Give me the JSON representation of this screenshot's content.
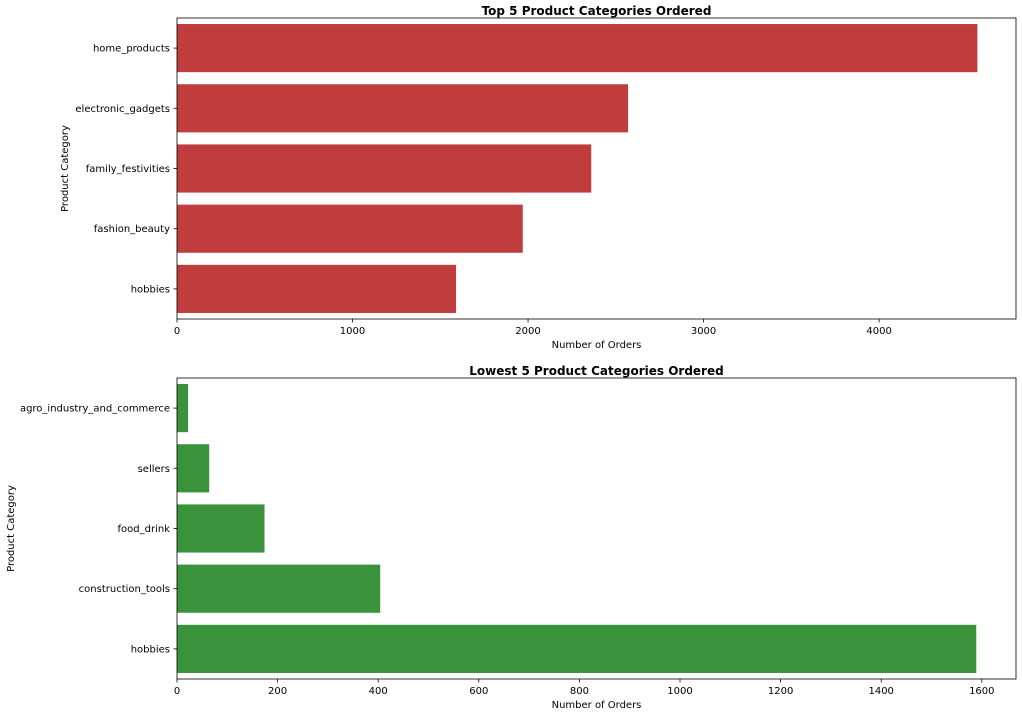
{
  "chart_data": [
    {
      "type": "bar",
      "orientation": "horizontal",
      "title": "Top 5 Product Categories Ordered",
      "xlabel": "Number of Orders",
      "ylabel": "Product Category",
      "categories": [
        "home_products",
        "electronic_gadgets",
        "family_festivities",
        "fashion_beauty",
        "hobbies"
      ],
      "values": [
        4560,
        2570,
        2360,
        1970,
        1590
      ],
      "xlim": [
        0,
        4780
      ],
      "xticks": [
        0,
        1000,
        2000,
        3000,
        4000
      ],
      "color": "#c03d3e",
      "grid": false,
      "legend": "none"
    },
    {
      "type": "bar",
      "orientation": "horizontal",
      "title": "Lowest 5 Product Categories Ordered",
      "xlabel": "Number of Orders",
      "ylabel": "Product Category",
      "categories": [
        "agro_industry_and_commerce",
        "sellers",
        "food_drink",
        "construction_tools",
        "hobbies"
      ],
      "values": [
        22,
        64,
        174,
        404,
        1589
      ],
      "xlim": [
        0,
        1668
      ],
      "xticks": [
        0,
        200,
        400,
        600,
        800,
        1000,
        1200,
        1400,
        1600
      ],
      "color": "#3a923a",
      "grid": false,
      "legend": "none"
    }
  ]
}
